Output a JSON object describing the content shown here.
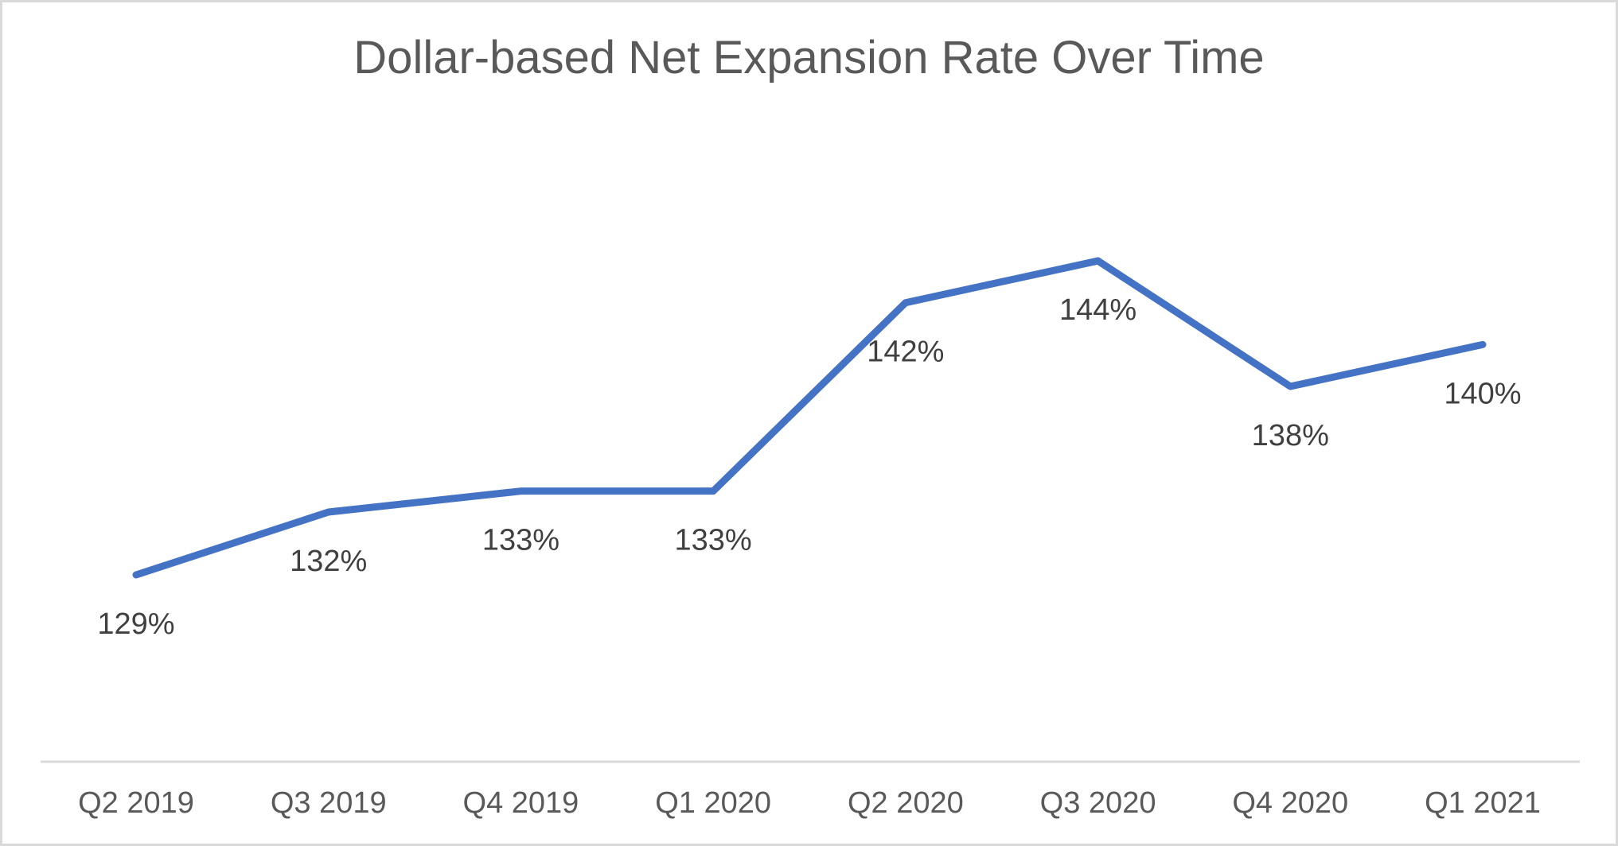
{
  "page": {
    "background_color": "#ffffff",
    "border_color": "#d9d9d9"
  },
  "chart_data": {
    "type": "line",
    "title": "Dollar-based Net Expansion Rate Over Time",
    "categories": [
      "Q2 2019",
      "Q3 2019",
      "Q4 2019",
      "Q1 2020",
      "Q2 2020",
      "Q3 2020",
      "Q4 2020",
      "Q1 2021"
    ],
    "values": [
      129,
      132,
      133,
      133,
      142,
      144,
      138,
      140
    ],
    "data_labels": [
      "129%",
      "132%",
      "133%",
      "133%",
      "142%",
      "144%",
      "138%",
      "140%"
    ],
    "unit": "%",
    "xlabel": "",
    "ylabel": "",
    "y_axis_visible": false,
    "gridlines": false,
    "legend_position": "none",
    "data_label_position": "below",
    "markers": false,
    "line_color": "#4472c4",
    "title_color": "#595959",
    "data_label_color": "#404040",
    "axis_label_color": "#595959",
    "axis_line_color": "#d9d9d9"
  }
}
